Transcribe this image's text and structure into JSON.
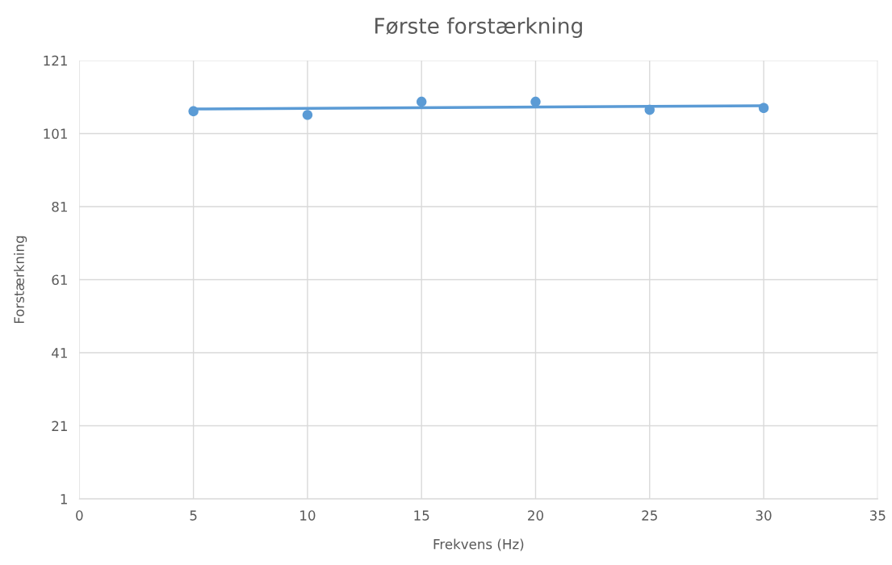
{
  "chart_data": {
    "type": "scatter",
    "title": "Første forstærkning",
    "xlabel": "Frekvens (Hz)",
    "ylabel": "Forstærkning",
    "series": [
      {
        "color": "#5b9bd5",
        "x": [
          5,
          10,
          15,
          20,
          25,
          30
        ],
        "values": [
          107.1,
          106.1,
          109.7,
          109.7,
          107.5,
          108.0
        ],
        "marker": "circle"
      },
      {
        "type": "line",
        "color": "#5b9bd5",
        "x": [
          5,
          30
        ],
        "values": [
          107.7,
          108.6
        ],
        "marker": "none",
        "line_style": "solid"
      }
    ],
    "xlim": [
      0,
      35
    ],
    "xticks": [
      0,
      5,
      10,
      15,
      20,
      25,
      30,
      35
    ],
    "ylim": [
      1,
      121
    ],
    "yticks": [
      1,
      21,
      41,
      61,
      81,
      101,
      121
    ],
    "grid": true,
    "legend": false
  }
}
